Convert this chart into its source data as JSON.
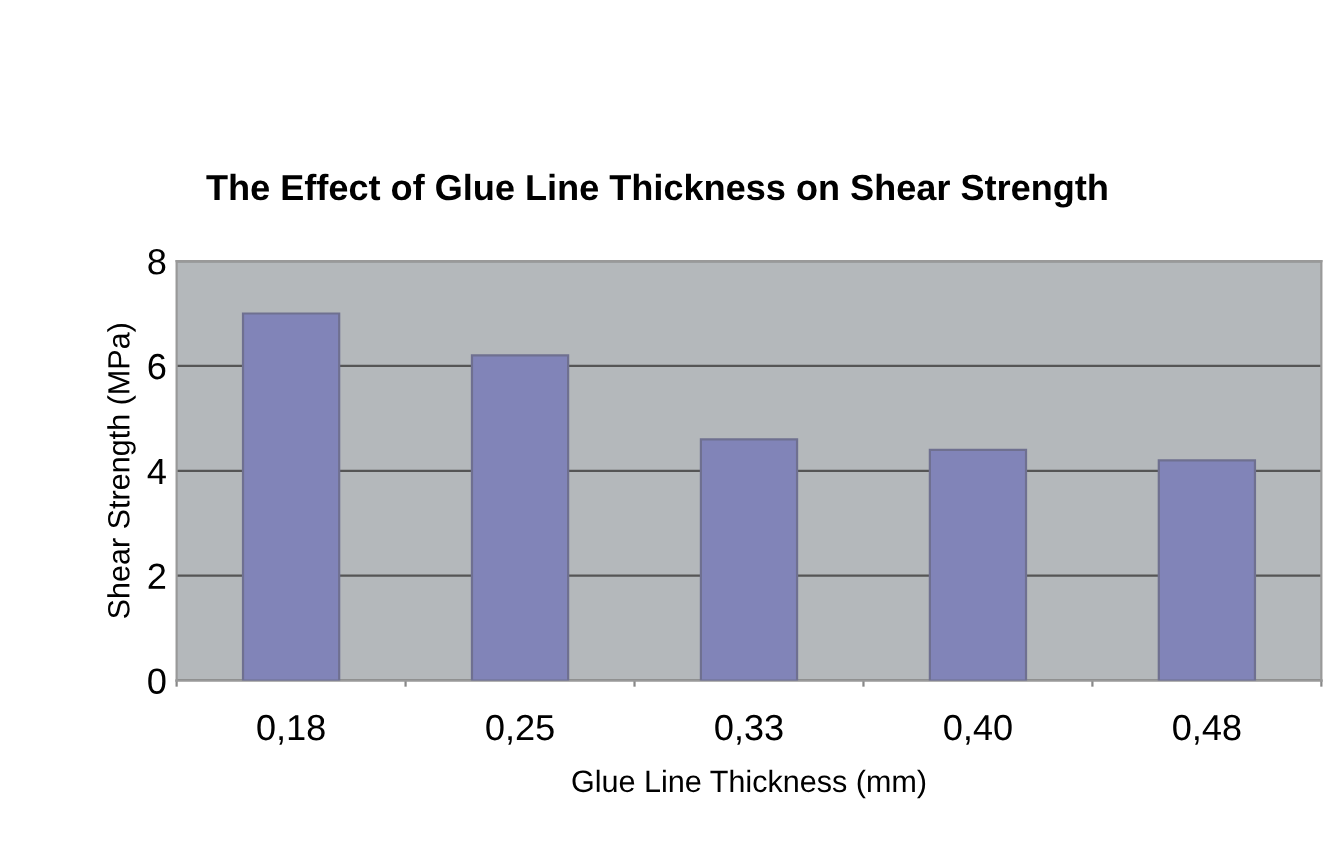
{
  "chart_data": {
    "type": "bar",
    "title": "The Effect of Glue Line Thickness on Shear Strength",
    "xlabel": "Glue Line Thickness (mm)",
    "ylabel": "Shear Strength (MPa)",
    "categories": [
      "0,18",
      "0,25",
      "0,33",
      "0,40",
      "0,48"
    ],
    "values": [
      7.0,
      6.2,
      4.6,
      4.4,
      4.2
    ],
    "color": "#8184b8",
    "ylim": [
      0,
      8
    ],
    "yticks": [
      0,
      2,
      4,
      6,
      8
    ],
    "grid": "y"
  }
}
